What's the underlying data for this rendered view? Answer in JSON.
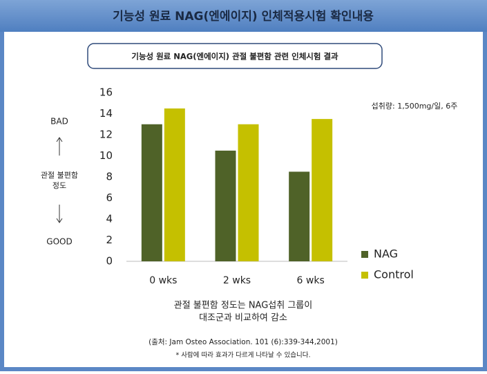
{
  "header_title": "기능성 원료 NAG(엔에이지) 인체적용시험 확인내용",
  "chart_data": {
    "type": "bar",
    "title": "기능성 원료 NAG(엔에이지) 관절 불편함 관련 인체시험 결과",
    "categories": [
      "0 wks",
      "2 wks",
      "6 wks"
    ],
    "series": [
      {
        "name": "NAG",
        "color": "#4f6228",
        "values": [
          13,
          10.5,
          8.5
        ]
      },
      {
        "name": "Control",
        "color": "#c5c000",
        "values": [
          14.5,
          13,
          13.5
        ]
      }
    ],
    "ylim": [
      0,
      16
    ],
    "yticks": [
      0,
      2,
      4,
      6,
      8,
      10,
      12,
      14,
      16
    ],
    "grid": false,
    "y_top_label": "BAD",
    "y_bottom_label": "GOOD",
    "y_axis_label": [
      "관절 불편함",
      "정도"
    ],
    "annotation": "섭취량: 1,500mg/일, 6주",
    "legend": "right-bottom",
    "conclusion": [
      "관절 불편함 정도는 NAG섭취 그룹이",
      "대조군과 비교하여 감소"
    ],
    "source": "(출처: Jam Osteo Association. 101 (6):339-344,2001)",
    "note": "* 사람에 따라 효과가 다르게 나타날 수 있습니다."
  }
}
